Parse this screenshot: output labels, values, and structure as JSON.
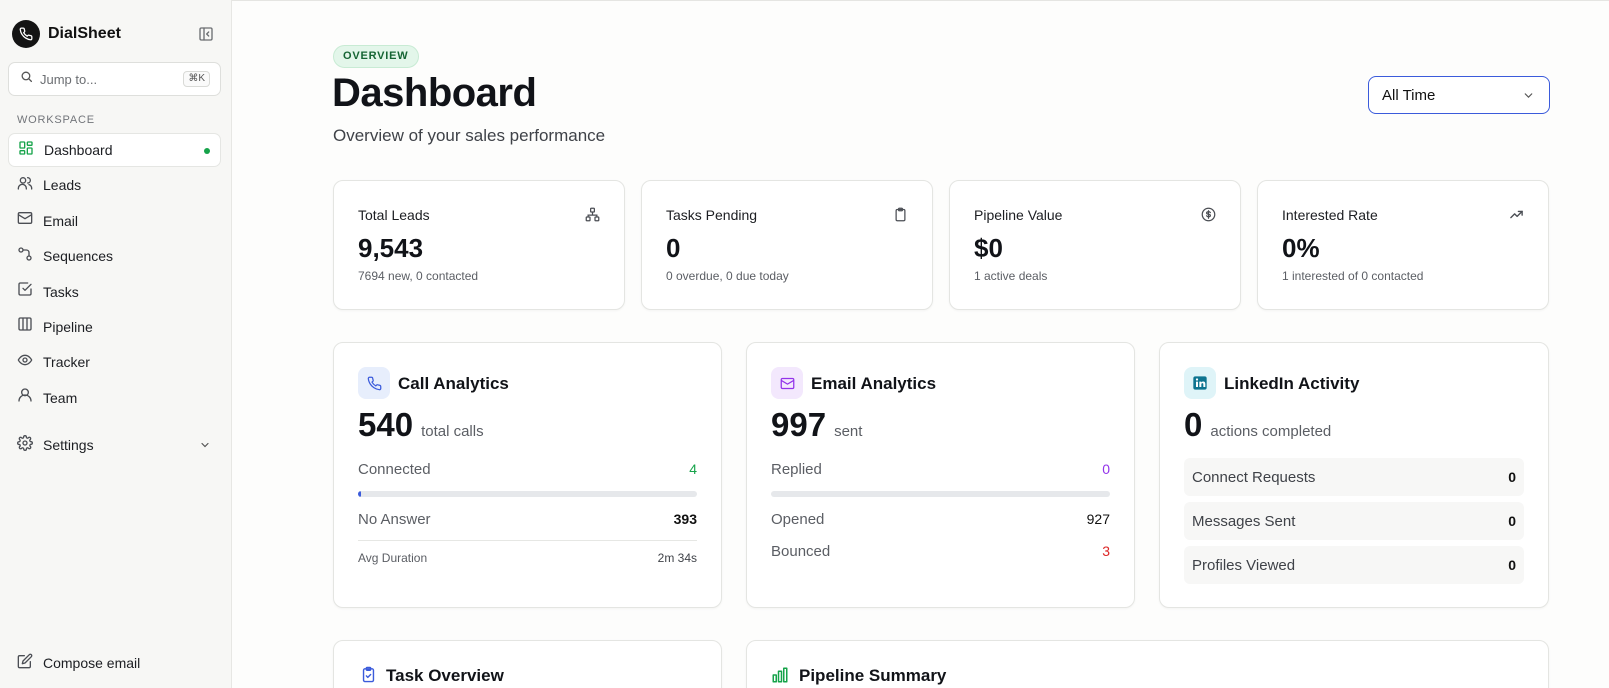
{
  "app": {
    "name": "DialSheet"
  },
  "search": {
    "placeholder": "Jump to...",
    "shortcut": "⌘K"
  },
  "sidebar": {
    "section_label": "WORKSPACE",
    "items": [
      {
        "label": "Dashboard",
        "icon": "dashboard-icon",
        "active": true
      },
      {
        "label": "Leads",
        "icon": "users-icon"
      },
      {
        "label": "Email",
        "icon": "mail-icon"
      },
      {
        "label": "Sequences",
        "icon": "sequences-icon"
      },
      {
        "label": "Tasks",
        "icon": "check-square-icon"
      },
      {
        "label": "Pipeline",
        "icon": "columns-icon"
      },
      {
        "label": "Tracker",
        "icon": "eye-icon"
      },
      {
        "label": "Team",
        "icon": "user-icon"
      }
    ],
    "settings_label": "Settings",
    "compose_label": "Compose email"
  },
  "header": {
    "badge": "OVERVIEW",
    "title": "Dashboard",
    "subtitle": "Overview of your sales performance",
    "range": "All Time"
  },
  "stats": [
    {
      "title": "Total Leads",
      "value": "9,543",
      "note": "7694 new, 0 contacted",
      "icon": "network-icon"
    },
    {
      "title": "Tasks Pending",
      "value": "0",
      "note": "0 overdue, 0 due today",
      "icon": "clipboard-icon"
    },
    {
      "title": "Pipeline Value",
      "value": "$0",
      "note": "1 active deals",
      "icon": "dollar-circle-icon"
    },
    {
      "title": "Interested Rate",
      "value": "0%",
      "note": "1 interested of 0 contacted",
      "icon": "trending-up-icon"
    }
  ],
  "call": {
    "title": "Call Analytics",
    "total": "540",
    "unit": "total calls",
    "connected_label": "Connected",
    "connected": "4",
    "connected_fraction": 0.0074,
    "no_answer_label": "No Answer",
    "no_answer": "393",
    "avg_label": "Avg Duration",
    "avg": "2m 34s"
  },
  "email": {
    "title": "Email Analytics",
    "total": "997",
    "unit": "sent",
    "replied_label": "Replied",
    "replied": "0",
    "replied_fraction": 0,
    "opened_label": "Opened",
    "opened": "927",
    "bounced_label": "Bounced",
    "bounced": "3"
  },
  "linkedin": {
    "title": "LinkedIn Activity",
    "total": "0",
    "unit": "actions completed",
    "rows": [
      {
        "label": "Connect Requests",
        "value": "0"
      },
      {
        "label": "Messages Sent",
        "value": "0"
      },
      {
        "label": "Profiles Viewed",
        "value": "0"
      }
    ]
  },
  "bottom": {
    "task_title": "Task Overview",
    "pipeline_title": "Pipeline Summary"
  },
  "colors": {
    "accent": "#3b5bdb",
    "success": "#16a34a",
    "danger": "#dc2626",
    "purple": "#9333ea"
  }
}
